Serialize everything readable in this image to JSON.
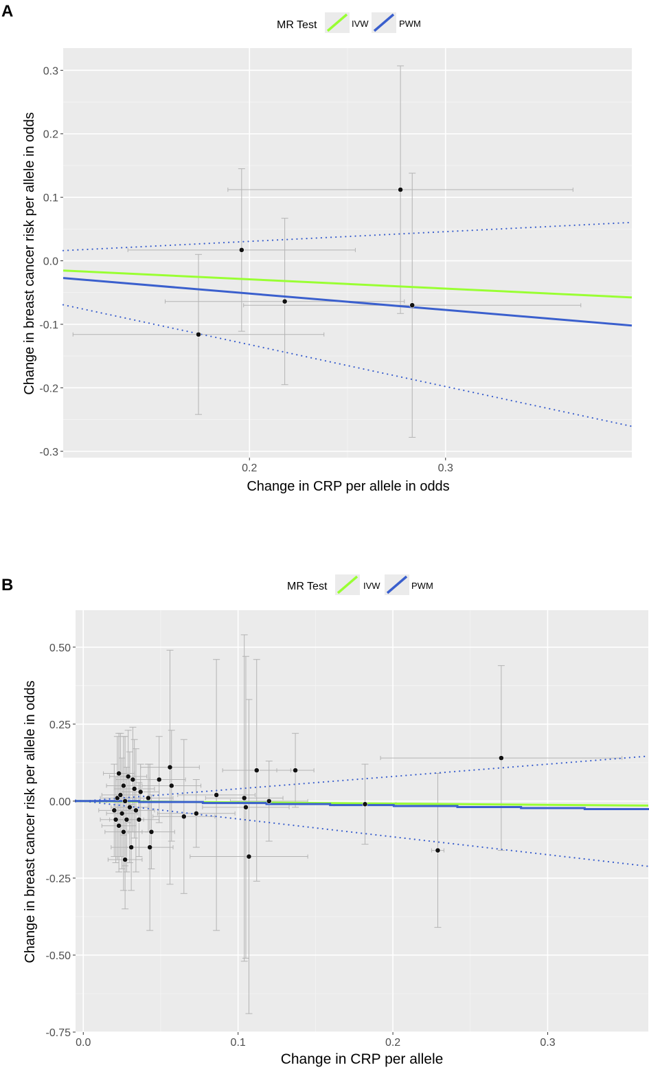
{
  "chart_data": [
    {
      "type": "scatter",
      "panel_label": "A",
      "title": "",
      "xlabel": "Change in CRP per allele in odds",
      "ylabel": "Change in breast cancer risk per allele in odds",
      "xlim": [
        0.105,
        0.395
      ],
      "ylim": [
        -0.31,
        0.335
      ],
      "x_ticks": [
        0.2,
        0.3
      ],
      "x_tick_labels": [
        "0.2",
        "0.3"
      ],
      "y_ticks": [
        -0.3,
        -0.2,
        -0.1,
        0.0,
        0.1,
        0.2,
        0.3
      ],
      "y_tick_labels": [
        "-0.3",
        "-0.2",
        "-0.1",
        "0.0",
        "0.1",
        "0.2",
        "0.3"
      ],
      "grid": true,
      "legend": {
        "title": "MR Test",
        "position": "top",
        "entries": [
          {
            "label": "IVW",
            "color": "#99ff33"
          },
          {
            "label": "PWM",
            "color": "#3a5fcd"
          }
        ]
      },
      "points": [
        {
          "x": 0.174,
          "y": -0.116,
          "xerr": 0.064,
          "yerr": 0.126
        },
        {
          "x": 0.196,
          "y": 0.017,
          "xerr": 0.058,
          "yerr": 0.128
        },
        {
          "x": 0.218,
          "y": -0.064,
          "xerr": 0.061,
          "yerr": 0.131
        },
        {
          "x": 0.277,
          "y": 0.112,
          "xerr": 0.088,
          "yerr": 0.195
        },
        {
          "x": 0.283,
          "y": -0.07,
          "xerr": 0.086,
          "yerr": 0.208
        }
      ],
      "lines": [
        {
          "name": "IVW",
          "style": "solid",
          "color": "#99ff33",
          "slope": -0.146,
          "intercept": 0.0
        },
        {
          "name": "PWM",
          "style": "solid",
          "color": "#3a5fcd",
          "slope": -0.258,
          "intercept": 0.0
        },
        {
          "name": "PWM upper CI",
          "style": "dotted",
          "color": "#3a5fcd",
          "slope": 0.153,
          "intercept": 0.0
        },
        {
          "name": "PWM lower CI",
          "style": "dotted",
          "color": "#3a5fcd",
          "slope": -0.66,
          "intercept": 0.0
        }
      ]
    },
    {
      "type": "scatter",
      "panel_label": "B",
      "title": "",
      "xlabel": "Change in CRP per allele",
      "ylabel": "Change in breast cancer risk per allele in odds",
      "xlim": [
        -0.005,
        0.365
      ],
      "ylim": [
        -0.75,
        0.62
      ],
      "x_ticks": [
        0.0,
        0.1,
        0.2,
        0.3
      ],
      "x_tick_labels": [
        "0.0",
        "0.1",
        "0.2",
        "0.3"
      ],
      "y_ticks": [
        -0.75,
        -0.5,
        -0.25,
        0.0,
        0.25,
        0.5
      ],
      "y_tick_labels": [
        "-0.75",
        "-0.50",
        "-0.25",
        "0.00",
        "0.25",
        "0.50"
      ],
      "grid": true,
      "legend": {
        "title": "MR Test",
        "position": "top",
        "entries": [
          {
            "label": "IVW",
            "color": "#99ff33"
          },
          {
            "label": "PWM",
            "color": "#3a5fcd"
          }
        ]
      },
      "points": [
        {
          "x": 0.02,
          "y": -0.03,
          "xerr": 0.01,
          "yerr": 0.15
        },
        {
          "x": 0.021,
          "y": -0.06,
          "xerr": 0.01,
          "yerr": 0.14
        },
        {
          "x": 0.022,
          "y": 0.01,
          "xerr": 0.011,
          "yerr": 0.2
        },
        {
          "x": 0.023,
          "y": 0.09,
          "xerr": 0.01,
          "yerr": 0.13
        },
        {
          "x": 0.023,
          "y": -0.08,
          "xerr": 0.011,
          "yerr": 0.15
        },
        {
          "x": 0.024,
          "y": 0.02,
          "xerr": 0.012,
          "yerr": 0.2
        },
        {
          "x": 0.025,
          "y": -0.04,
          "xerr": 0.01,
          "yerr": 0.18
        },
        {
          "x": 0.026,
          "y": 0.05,
          "xerr": 0.011,
          "yerr": 0.16
        },
        {
          "x": 0.026,
          "y": -0.1,
          "xerr": 0.012,
          "yerr": 0.19
        },
        {
          "x": 0.027,
          "y": -0.19,
          "xerr": 0.011,
          "yerr": 0.16
        },
        {
          "x": 0.027,
          "y": 0.0,
          "xerr": 0.012,
          "yerr": 0.21
        },
        {
          "x": 0.028,
          "y": -0.06,
          "xerr": 0.011,
          "yerr": 0.17
        },
        {
          "x": 0.029,
          "y": 0.08,
          "xerr": 0.012,
          "yerr": 0.15
        },
        {
          "x": 0.03,
          "y": -0.02,
          "xerr": 0.012,
          "yerr": 0.18
        },
        {
          "x": 0.031,
          "y": -0.15,
          "xerr": 0.013,
          "yerr": 0.14
        },
        {
          "x": 0.032,
          "y": 0.07,
          "xerr": 0.011,
          "yerr": 0.17
        },
        {
          "x": 0.033,
          "y": 0.04,
          "xerr": 0.013,
          "yerr": 0.16
        },
        {
          "x": 0.034,
          "y": -0.03,
          "xerr": 0.012,
          "yerr": 0.2
        },
        {
          "x": 0.036,
          "y": -0.06,
          "xerr": 0.013,
          "yerr": 0.12
        },
        {
          "x": 0.037,
          "y": 0.03,
          "xerr": 0.012,
          "yerr": 0.09
        },
        {
          "x": 0.042,
          "y": 0.01,
          "xerr": 0.016,
          "yerr": 0.11
        },
        {
          "x": 0.043,
          "y": -0.15,
          "xerr": 0.015,
          "yerr": 0.27
        },
        {
          "x": 0.044,
          "y": -0.1,
          "xerr": 0.015,
          "yerr": 0.12
        },
        {
          "x": 0.049,
          "y": 0.07,
          "xerr": 0.017,
          "yerr": 0.14
        },
        {
          "x": 0.056,
          "y": 0.11,
          "xerr": 0.019,
          "yerr": 0.38
        },
        {
          "x": 0.057,
          "y": 0.05,
          "xerr": 0.019,
          "yerr": 0.18
        },
        {
          "x": 0.065,
          "y": -0.05,
          "xerr": 0.02,
          "yerr": 0.25
        },
        {
          "x": 0.073,
          "y": -0.04,
          "xerr": 0.025,
          "yerr": 0.11
        },
        {
          "x": 0.086,
          "y": 0.02,
          "xerr": 0.025,
          "yerr": 0.44
        },
        {
          "x": 0.104,
          "y": 0.01,
          "xerr": 0.025,
          "yerr": 0.53
        },
        {
          "x": 0.105,
          "y": -0.02,
          "xerr": 0.028,
          "yerr": 0.49
        },
        {
          "x": 0.107,
          "y": -0.18,
          "xerr": 0.038,
          "yerr": 0.51
        },
        {
          "x": 0.112,
          "y": 0.1,
          "xerr": 0.022,
          "yerr": 0.36
        },
        {
          "x": 0.12,
          "y": 0.0,
          "xerr": 0.025,
          "yerr": 0.13
        },
        {
          "x": 0.137,
          "y": 0.1,
          "xerr": 0.012,
          "yerr": 0.12
        },
        {
          "x": 0.182,
          "y": -0.01,
          "xerr": 0.02,
          "yerr": 0.13
        },
        {
          "x": 0.229,
          "y": -0.16,
          "xerr": 0.004,
          "yerr": 0.25
        },
        {
          "x": 0.27,
          "y": 0.14,
          "xerr": 0.078,
          "yerr": 0.3
        }
      ],
      "lines": [
        {
          "name": "IVW",
          "style": "solid",
          "color": "#99ff33",
          "slope": -0.04,
          "intercept": 0.0
        },
        {
          "name": "PWM",
          "style": "stepped",
          "color": "#3a5fcd",
          "slope": -0.08,
          "intercept": 0.0
        },
        {
          "name": "PWM upper CI",
          "style": "dotted",
          "color": "#3a5fcd",
          "slope": 0.4,
          "intercept": 0.0
        },
        {
          "name": "PWM lower CI",
          "style": "dotted",
          "color": "#3a5fcd",
          "slope": -0.58,
          "intercept": 0.0
        }
      ]
    }
  ]
}
